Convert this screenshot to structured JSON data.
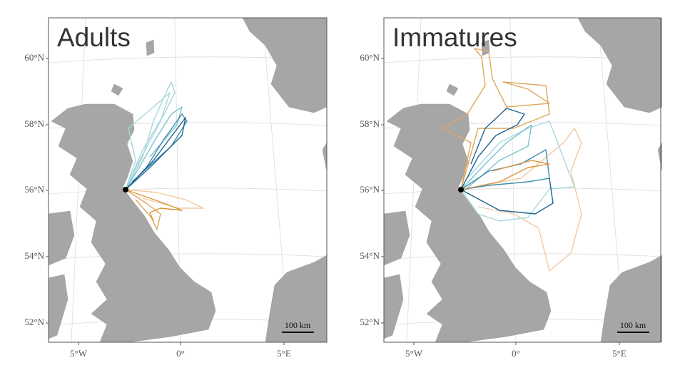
{
  "panels": [
    {
      "title": "Adults",
      "lat_labels": [
        "60°N",
        "58°N",
        "56°N",
        "54°N",
        "52°N"
      ],
      "lon_labels": [
        "5°W",
        "0°",
        "5°E"
      ],
      "scale_label": "100 km"
    },
    {
      "title": "Immatures",
      "lat_labels": [
        "60°N",
        "58°N",
        "56°N",
        "54°N",
        "52°N"
      ],
      "lon_labels": [
        "5°W",
        "0°",
        "5°E"
      ],
      "scale_label": "100 km"
    }
  ]
}
